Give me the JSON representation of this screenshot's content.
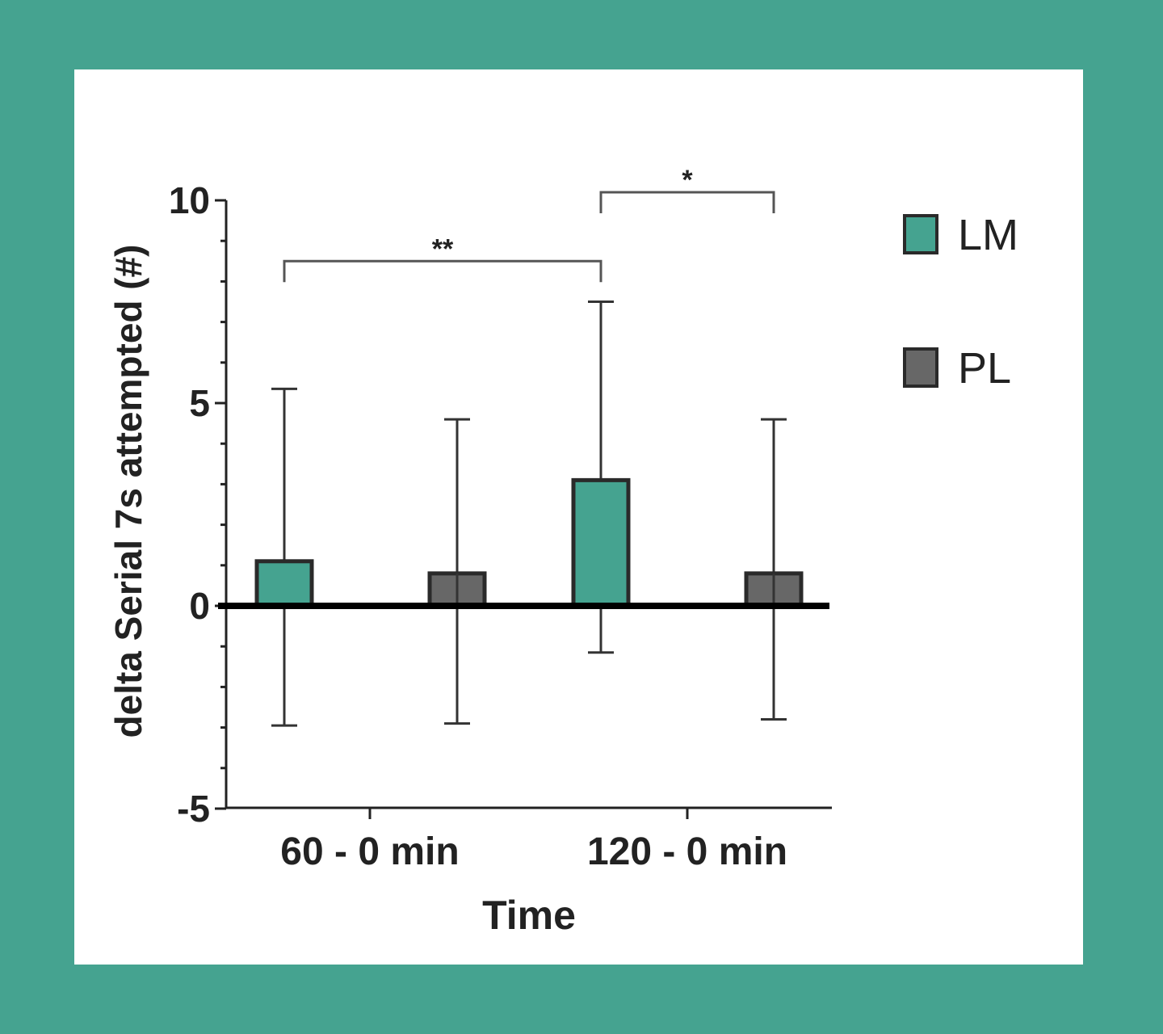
{
  "chart_data": {
    "type": "bar",
    "title": "",
    "xlabel": "Time",
    "ylabel": "delta Serial 7s attempted (#)",
    "ylim": [
      -5,
      10
    ],
    "yticks": [
      "-5",
      "0",
      "5",
      "10"
    ],
    "categories": [
      "60 - 0 min",
      "120 - 0 min"
    ],
    "series": [
      {
        "name": "LM",
        "color": "#45a390",
        "values": [
          1.1,
          3.1
        ],
        "err_upper": [
          5.35,
          7.5
        ],
        "err_lower": [
          -2.95,
          -1.15
        ]
      },
      {
        "name": "PL",
        "color": "#676767",
        "values": [
          0.8,
          0.8
        ],
        "err_upper": [
          4.6,
          4.6
        ],
        "err_lower": [
          -2.9,
          -2.8
        ]
      }
    ],
    "legend": {
      "position": "top-right",
      "entries": [
        "LM",
        "PL"
      ]
    },
    "annotations": [
      {
        "text": "**",
        "from": "LM 60 - 0 min",
        "to": "LM 120 - 0 min",
        "y": 8.5
      },
      {
        "text": "*",
        "from": "LM 120 - 0 min",
        "to": "PL 120 - 0 min",
        "y": 10.2
      }
    ],
    "grid": false
  }
}
